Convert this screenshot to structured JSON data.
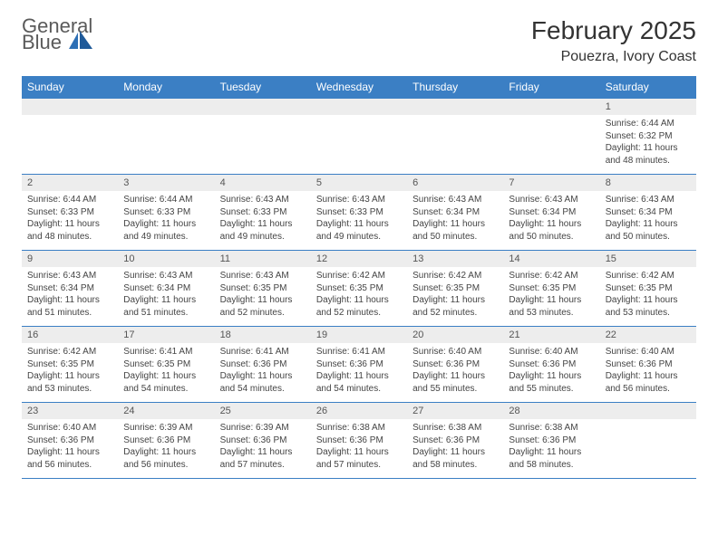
{
  "logo": {
    "text_gray": "General",
    "text_blue": "Blue"
  },
  "title": "February 2025",
  "location": "Pouezra, Ivory Coast",
  "colors": {
    "header_bg": "#3b7fc4",
    "header_text": "#ffffff",
    "row_border": "#3b7fc4",
    "daynum_bg": "#ededed",
    "body_text": "#444444",
    "logo_gray": "#5a5a5a",
    "logo_blue": "#2d6fb5"
  },
  "headers": [
    "Sunday",
    "Monday",
    "Tuesday",
    "Wednesday",
    "Thursday",
    "Friday",
    "Saturday"
  ],
  "weeks": [
    [
      {
        "n": "",
        "sr": "",
        "ss": "",
        "dl": ""
      },
      {
        "n": "",
        "sr": "",
        "ss": "",
        "dl": ""
      },
      {
        "n": "",
        "sr": "",
        "ss": "",
        "dl": ""
      },
      {
        "n": "",
        "sr": "",
        "ss": "",
        "dl": ""
      },
      {
        "n": "",
        "sr": "",
        "ss": "",
        "dl": ""
      },
      {
        "n": "",
        "sr": "",
        "ss": "",
        "dl": ""
      },
      {
        "n": "1",
        "sr": "Sunrise: 6:44 AM",
        "ss": "Sunset: 6:32 PM",
        "dl": "Daylight: 11 hours and 48 minutes."
      }
    ],
    [
      {
        "n": "2",
        "sr": "Sunrise: 6:44 AM",
        "ss": "Sunset: 6:33 PM",
        "dl": "Daylight: 11 hours and 48 minutes."
      },
      {
        "n": "3",
        "sr": "Sunrise: 6:44 AM",
        "ss": "Sunset: 6:33 PM",
        "dl": "Daylight: 11 hours and 49 minutes."
      },
      {
        "n": "4",
        "sr": "Sunrise: 6:43 AM",
        "ss": "Sunset: 6:33 PM",
        "dl": "Daylight: 11 hours and 49 minutes."
      },
      {
        "n": "5",
        "sr": "Sunrise: 6:43 AM",
        "ss": "Sunset: 6:33 PM",
        "dl": "Daylight: 11 hours and 49 minutes."
      },
      {
        "n": "6",
        "sr": "Sunrise: 6:43 AM",
        "ss": "Sunset: 6:34 PM",
        "dl": "Daylight: 11 hours and 50 minutes."
      },
      {
        "n": "7",
        "sr": "Sunrise: 6:43 AM",
        "ss": "Sunset: 6:34 PM",
        "dl": "Daylight: 11 hours and 50 minutes."
      },
      {
        "n": "8",
        "sr": "Sunrise: 6:43 AM",
        "ss": "Sunset: 6:34 PM",
        "dl": "Daylight: 11 hours and 50 minutes."
      }
    ],
    [
      {
        "n": "9",
        "sr": "Sunrise: 6:43 AM",
        "ss": "Sunset: 6:34 PM",
        "dl": "Daylight: 11 hours and 51 minutes."
      },
      {
        "n": "10",
        "sr": "Sunrise: 6:43 AM",
        "ss": "Sunset: 6:34 PM",
        "dl": "Daylight: 11 hours and 51 minutes."
      },
      {
        "n": "11",
        "sr": "Sunrise: 6:43 AM",
        "ss": "Sunset: 6:35 PM",
        "dl": "Daylight: 11 hours and 52 minutes."
      },
      {
        "n": "12",
        "sr": "Sunrise: 6:42 AM",
        "ss": "Sunset: 6:35 PM",
        "dl": "Daylight: 11 hours and 52 minutes."
      },
      {
        "n": "13",
        "sr": "Sunrise: 6:42 AM",
        "ss": "Sunset: 6:35 PM",
        "dl": "Daylight: 11 hours and 52 minutes."
      },
      {
        "n": "14",
        "sr": "Sunrise: 6:42 AM",
        "ss": "Sunset: 6:35 PM",
        "dl": "Daylight: 11 hours and 53 minutes."
      },
      {
        "n": "15",
        "sr": "Sunrise: 6:42 AM",
        "ss": "Sunset: 6:35 PM",
        "dl": "Daylight: 11 hours and 53 minutes."
      }
    ],
    [
      {
        "n": "16",
        "sr": "Sunrise: 6:42 AM",
        "ss": "Sunset: 6:35 PM",
        "dl": "Daylight: 11 hours and 53 minutes."
      },
      {
        "n": "17",
        "sr": "Sunrise: 6:41 AM",
        "ss": "Sunset: 6:35 PM",
        "dl": "Daylight: 11 hours and 54 minutes."
      },
      {
        "n": "18",
        "sr": "Sunrise: 6:41 AM",
        "ss": "Sunset: 6:36 PM",
        "dl": "Daylight: 11 hours and 54 minutes."
      },
      {
        "n": "19",
        "sr": "Sunrise: 6:41 AM",
        "ss": "Sunset: 6:36 PM",
        "dl": "Daylight: 11 hours and 54 minutes."
      },
      {
        "n": "20",
        "sr": "Sunrise: 6:40 AM",
        "ss": "Sunset: 6:36 PM",
        "dl": "Daylight: 11 hours and 55 minutes."
      },
      {
        "n": "21",
        "sr": "Sunrise: 6:40 AM",
        "ss": "Sunset: 6:36 PM",
        "dl": "Daylight: 11 hours and 55 minutes."
      },
      {
        "n": "22",
        "sr": "Sunrise: 6:40 AM",
        "ss": "Sunset: 6:36 PM",
        "dl": "Daylight: 11 hours and 56 minutes."
      }
    ],
    [
      {
        "n": "23",
        "sr": "Sunrise: 6:40 AM",
        "ss": "Sunset: 6:36 PM",
        "dl": "Daylight: 11 hours and 56 minutes."
      },
      {
        "n": "24",
        "sr": "Sunrise: 6:39 AM",
        "ss": "Sunset: 6:36 PM",
        "dl": "Daylight: 11 hours and 56 minutes."
      },
      {
        "n": "25",
        "sr": "Sunrise: 6:39 AM",
        "ss": "Sunset: 6:36 PM",
        "dl": "Daylight: 11 hours and 57 minutes."
      },
      {
        "n": "26",
        "sr": "Sunrise: 6:38 AM",
        "ss": "Sunset: 6:36 PM",
        "dl": "Daylight: 11 hours and 57 minutes."
      },
      {
        "n": "27",
        "sr": "Sunrise: 6:38 AM",
        "ss": "Sunset: 6:36 PM",
        "dl": "Daylight: 11 hours and 58 minutes."
      },
      {
        "n": "28",
        "sr": "Sunrise: 6:38 AM",
        "ss": "Sunset: 6:36 PM",
        "dl": "Daylight: 11 hours and 58 minutes."
      },
      {
        "n": "",
        "sr": "",
        "ss": "",
        "dl": ""
      }
    ]
  ]
}
